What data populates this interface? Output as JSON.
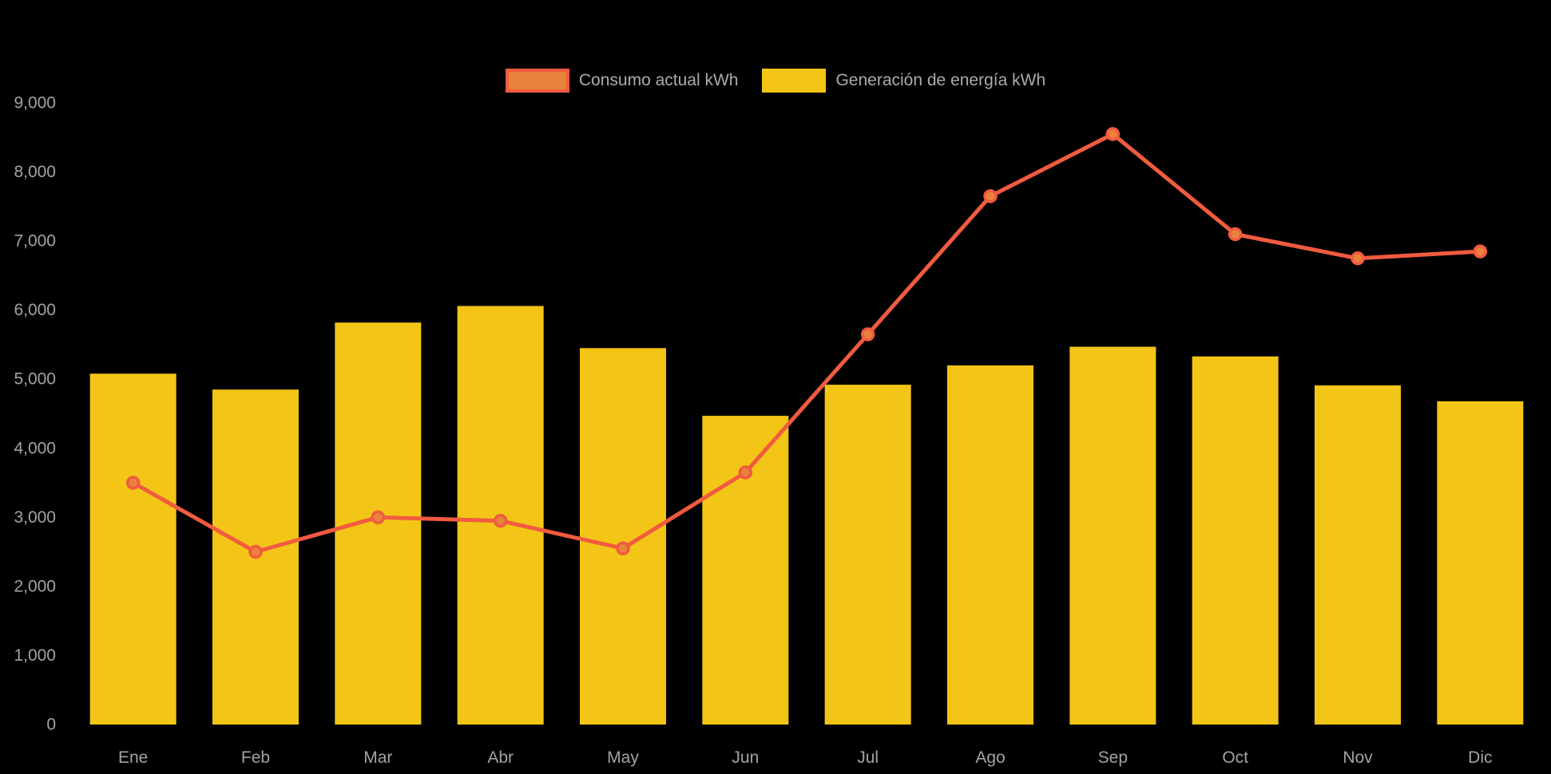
{
  "background_color": "#000000",
  "text_color": "#A3A3A3",
  "legend": {
    "items": [
      {
        "label": "Consumo actual kWh",
        "fill": "#E8823C",
        "border": "#F15B3F"
      },
      {
        "label": "Generación de energía kWh",
        "fill": "#F3C517",
        "border": "#F3C517"
      }
    ]
  },
  "chart_data": {
    "type": "bar",
    "subtype": "combo-bar-line",
    "title": "",
    "xlabel": "",
    "ylabel": "",
    "categories": [
      "Ene",
      "Feb",
      "Mar",
      "Abr",
      "May",
      "Jun",
      "Jul",
      "Ago",
      "Sep",
      "Oct",
      "Nov",
      "Dic"
    ],
    "series": [
      {
        "name": "Consumo actual kWh",
        "type": "line",
        "color": "#F15B3F",
        "point_fill": "#E8823C",
        "values": [
          3500,
          2500,
          3000,
          2950,
          2550,
          3650,
          5650,
          7650,
          8550,
          7100,
          6750,
          6850
        ]
      },
      {
        "name": "Generación de energía kWh",
        "type": "bar",
        "color": "#F3C517",
        "values": [
          5080,
          4850,
          5820,
          6060,
          5450,
          4470,
          4920,
          5200,
          5470,
          5330,
          4910,
          4680
        ]
      }
    ],
    "ylim": [
      0,
      9000
    ],
    "y_tick_step": 1000,
    "y_tick_labels": [
      "0",
      "1,000",
      "2,000",
      "3,000",
      "4,000",
      "5,000",
      "6,000",
      "7,000",
      "8,000",
      "9,000"
    ],
    "grid": false,
    "legend_position": "top"
  }
}
